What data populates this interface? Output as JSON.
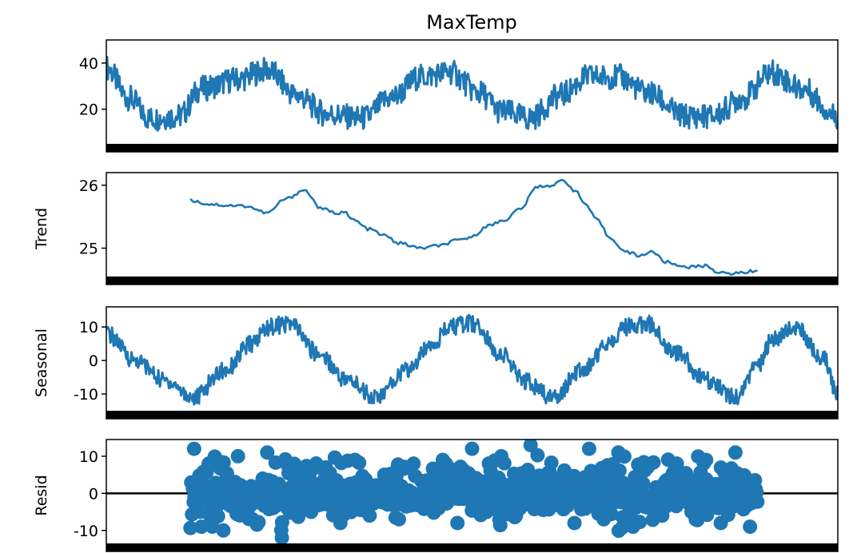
{
  "title": "MaxTemp",
  "colors": {
    "series": "#1f77b4",
    "axis": "#000000",
    "background": "#ffffff"
  },
  "chart_data": [
    {
      "panel": "observed",
      "type": "line",
      "ylabel": "",
      "ylim": [
        5,
        50
      ],
      "yticks": [
        20,
        40
      ],
      "x_fraction": [
        0,
        0.03,
        0.06,
        0.1,
        0.13,
        0.18,
        0.22,
        0.26,
        0.3,
        0.35,
        0.39,
        0.43,
        0.47,
        0.51,
        0.54,
        0.58,
        0.62,
        0.66,
        0.7,
        0.74,
        0.79,
        0.83,
        0.87,
        0.91,
        0.95,
        1.0
      ],
      "values": [
        38,
        25,
        16,
        17,
        29,
        33,
        37,
        26,
        18,
        16,
        25,
        34,
        36,
        27,
        19,
        16,
        26,
        34,
        34,
        27,
        17,
        17,
        25,
        36,
        29,
        17
      ]
    },
    {
      "panel": "trend",
      "type": "line",
      "ylabel": "Trend",
      "ylim": [
        24.55,
        26.2
      ],
      "yticks": [
        25,
        26
      ],
      "x_fraction": [
        0.115,
        0.14,
        0.165,
        0.19,
        0.22,
        0.245,
        0.27,
        0.295,
        0.315,
        0.325,
        0.335,
        0.36,
        0.38,
        0.4,
        0.43,
        0.455,
        0.48,
        0.5,
        0.52,
        0.545,
        0.565,
        0.59,
        0.61,
        0.625,
        0.64,
        0.655,
        0.67,
        0.69,
        0.71,
        0.73,
        0.745,
        0.765,
        0.785,
        0.8,
        0.82,
        0.84,
        0.86,
        0.875,
        0.89
      ],
      "values": [
        25.76,
        25.7,
        25.68,
        25.67,
        25.56,
        25.78,
        25.92,
        25.62,
        25.56,
        25.58,
        25.46,
        25.3,
        25.2,
        25.08,
        25.0,
        25.04,
        25.12,
        25.18,
        25.35,
        25.45,
        25.62,
        25.98,
        26.0,
        26.08,
        25.92,
        25.7,
        25.45,
        25.15,
        24.94,
        24.88,
        24.95,
        24.78,
        24.72,
        24.7,
        24.72,
        24.6,
        24.6,
        24.62,
        24.65
      ]
    },
    {
      "panel": "seasonal",
      "type": "line",
      "ylabel": "Seasonal",
      "ylim": [
        -15,
        16
      ],
      "yticks": [
        -10,
        0,
        10
      ],
      "x_fraction": [
        0,
        0.04,
        0.08,
        0.12,
        0.16,
        0.2,
        0.22,
        0.25,
        0.29,
        0.33,
        0.37,
        0.41,
        0.45,
        0.47,
        0.5,
        0.54,
        0.57,
        0.61,
        0.65,
        0.69,
        0.71,
        0.74,
        0.78,
        0.82,
        0.86,
        0.89,
        0.91,
        0.94,
        0.98,
        1.0
      ],
      "values": [
        8,
        0,
        -6,
        -11,
        -3,
        5,
        10,
        11,
        2,
        -6,
        -11,
        -3,
        6,
        10,
        11,
        2,
        -6,
        -11,
        -3,
        6,
        10,
        11,
        2,
        -6,
        -11,
        -2,
        6,
        10,
        1,
        -10
      ]
    },
    {
      "panel": "resid",
      "type": "scatter",
      "ylabel": "Resid",
      "ylim": [
        -13.5,
        14.5
      ],
      "yticks": [
        -10,
        0,
        10
      ],
      "x_range_fraction": [
        0.115,
        0.89
      ],
      "x_fraction": [
        0.12,
        0.13,
        0.14,
        0.16,
        0.18,
        0.2,
        0.22,
        0.24,
        0.26,
        0.28,
        0.3,
        0.32,
        0.34,
        0.36,
        0.38,
        0.4,
        0.42,
        0.44,
        0.46,
        0.48,
        0.5,
        0.52,
        0.54,
        0.56,
        0.58,
        0.6,
        0.62,
        0.64,
        0.66,
        0.68,
        0.7,
        0.72,
        0.74,
        0.76,
        0.78,
        0.8,
        0.82,
        0.84,
        0.86,
        0.88
      ],
      "values": [
        12,
        -9,
        8,
        -10,
        10,
        -7,
        11,
        -12,
        6,
        -5,
        7,
        -8,
        9,
        -6,
        5,
        -7,
        8,
        -4,
        9,
        -8,
        12,
        -5,
        10,
        -6,
        13,
        -3,
        4,
        -8,
        12,
        -7,
        11,
        -9,
        7,
        -6,
        8,
        -5,
        9,
        -8,
        11,
        -9
      ]
    }
  ]
}
